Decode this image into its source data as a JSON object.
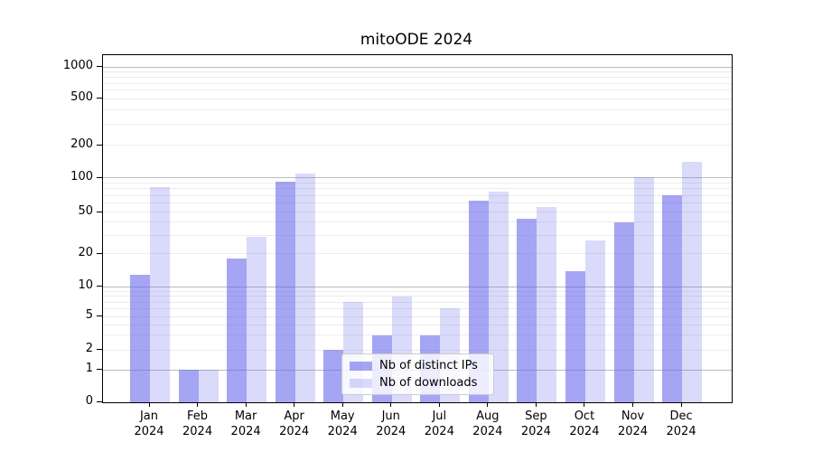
{
  "title": "mitoODE 2024",
  "chart_data": {
    "type": "bar",
    "title": "mitoODE 2024",
    "categories": [
      "Jan",
      "Feb",
      "Mar",
      "Apr",
      "May",
      "Jun",
      "Jul",
      "Aug",
      "Sep",
      "Oct",
      "Nov",
      "Dec"
    ],
    "year": "2024",
    "series": [
      {
        "name": "Nb of distinct IPs",
        "color": "#6464eb",
        "opacity": 0.58,
        "values": [
          13,
          1,
          18,
          92,
          2,
          3,
          3,
          63,
          43,
          14,
          40,
          70
        ]
      },
      {
        "name": "Nb of downloads",
        "color": "#6464eb",
        "opacity": 0.24,
        "values": [
          83,
          1,
          29,
          110,
          7,
          8,
          6,
          76,
          56,
          27,
          101,
          140
        ]
      }
    ],
    "y_axis": {
      "scale": "symlog",
      "ticks": [
        0,
        1,
        2,
        5,
        10,
        20,
        50,
        100,
        200,
        500,
        1000
      ],
      "major_gridlines": [
        1,
        10,
        100,
        1000
      ],
      "range": [
        0,
        1300
      ],
      "grid": true
    },
    "x_axis": {
      "tick_label_lines": 2
    },
    "legend": {
      "position": "inside lower-center"
    }
  },
  "colors": {
    "major_grid": "#bcbcbc",
    "minor_grid": "#ececec",
    "spine": "#000000",
    "text": "#000000",
    "legend_border": "#cccccc",
    "legend_bg": "rgba(255,255,255,0.8)"
  }
}
